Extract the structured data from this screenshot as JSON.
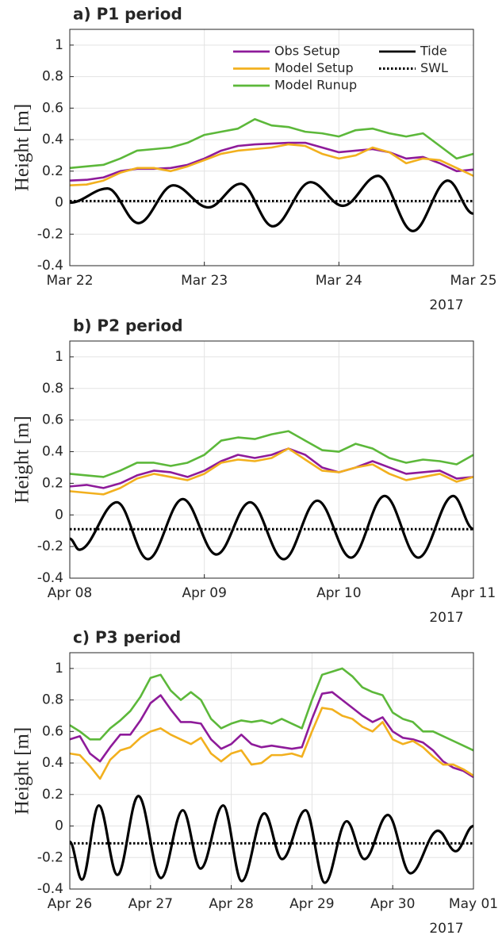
{
  "chart_data": [
    {
      "type": "line",
      "title": "a) P1 period",
      "y_label": "Height [m]",
      "x_offset_label": "2017",
      "xlim": [
        0,
        3
      ],
      "xticks": [
        {
          "value": 0,
          "label": "Mar 22"
        },
        {
          "value": 1,
          "label": "Mar 23"
        },
        {
          "value": 2,
          "label": "Mar 24"
        },
        {
          "value": 3,
          "label": "Mar 25"
        }
      ],
      "ylim": [
        -0.4,
        1.1
      ],
      "yticks": [
        -0.4,
        -0.2,
        0,
        0.2,
        0.4,
        0.6,
        0.8,
        1
      ],
      "grid": true,
      "legend": "upper right",
      "x": [
        0,
        0.125,
        0.25,
        0.375,
        0.5,
        0.625,
        0.75,
        0.875,
        1,
        1.125,
        1.25,
        1.375,
        1.5,
        1.625,
        1.75,
        1.875,
        2,
        2.125,
        2.25,
        2.375,
        2.5,
        2.625,
        2.75,
        2.875,
        3
      ],
      "series": [
        {
          "name": "Obs Setup",
          "color": "#8e1b9a",
          "values": [
            0.14,
            0.145,
            0.16,
            0.2,
            0.215,
            0.215,
            0.22,
            0.24,
            0.28,
            0.33,
            0.36,
            0.37,
            0.375,
            0.38,
            0.38,
            0.35,
            0.32,
            0.33,
            0.34,
            0.32,
            0.28,
            0.29,
            0.25,
            0.2,
            0.21
          ]
        },
        {
          "name": "Model Setup",
          "color": "#f2b01e",
          "values": [
            0.11,
            0.115,
            0.14,
            0.19,
            0.22,
            0.22,
            0.2,
            0.23,
            0.27,
            0.31,
            0.33,
            0.34,
            0.35,
            0.37,
            0.36,
            0.31,
            0.28,
            0.3,
            0.35,
            0.32,
            0.25,
            0.28,
            0.27,
            0.22,
            0.17
          ]
        },
        {
          "name": "Model Runup",
          "color": "#5cb83a",
          "values": [
            0.22,
            0.23,
            0.24,
            0.28,
            0.33,
            0.34,
            0.35,
            0.38,
            0.43,
            0.45,
            0.47,
            0.53,
            0.49,
            0.48,
            0.45,
            0.44,
            0.42,
            0.46,
            0.47,
            0.44,
            0.42,
            0.44,
            0.36,
            0.28,
            0.31
          ]
        },
        {
          "name": "Tide",
          "color": "#000000",
          "smooth": true,
          "x": [
            0,
            0.28,
            0.51,
            0.77,
            1.03,
            1.27,
            1.51,
            1.79,
            2.03,
            2.29,
            2.55,
            2.81,
            3
          ],
          "values": [
            0,
            0.09,
            -0.13,
            0.11,
            -0.03,
            0.12,
            -0.15,
            0.13,
            -0.02,
            0.17,
            -0.18,
            0.14,
            -0.07
          ]
        },
        {
          "name": "SWL",
          "color": "#000000",
          "dash": "dotted",
          "x": [
            0,
            3
          ],
          "values": [
            0.01,
            0.01
          ]
        }
      ]
    },
    {
      "type": "line",
      "title": "b) P2 period",
      "y_label": "Height [m]",
      "x_offset_label": "2017",
      "xlim": [
        0,
        3
      ],
      "xticks": [
        {
          "value": 0,
          "label": "Apr 08"
        },
        {
          "value": 1,
          "label": "Apr 09"
        },
        {
          "value": 2,
          "label": "Apr 10"
        },
        {
          "value": 3,
          "label": "Apr 11"
        }
      ],
      "ylim": [
        -0.4,
        1.1
      ],
      "yticks": [
        -0.4,
        -0.2,
        0,
        0.2,
        0.4,
        0.6,
        0.8,
        1
      ],
      "grid": true,
      "x": [
        0,
        0.125,
        0.25,
        0.375,
        0.5,
        0.625,
        0.75,
        0.875,
        1,
        1.125,
        1.25,
        1.375,
        1.5,
        1.625,
        1.75,
        1.875,
        2,
        2.125,
        2.25,
        2.375,
        2.5,
        2.625,
        2.75,
        2.875,
        3
      ],
      "series": [
        {
          "color": "#8e1b9a",
          "values": [
            0.18,
            0.19,
            0.17,
            0.2,
            0.25,
            0.28,
            0.27,
            0.24,
            0.28,
            0.34,
            0.38,
            0.36,
            0.38,
            0.42,
            0.38,
            0.3,
            0.27,
            0.3,
            0.34,
            0.3,
            0.26,
            0.27,
            0.28,
            0.23,
            0.24
          ]
        },
        {
          "color": "#f2b01e",
          "values": [
            0.15,
            0.14,
            0.13,
            0.17,
            0.23,
            0.26,
            0.24,
            0.22,
            0.26,
            0.33,
            0.35,
            0.34,
            0.36,
            0.42,
            0.35,
            0.28,
            0.27,
            0.3,
            0.32,
            0.26,
            0.22,
            0.24,
            0.26,
            0.21,
            0.24
          ]
        },
        {
          "color": "#5cb83a",
          "values": [
            0.26,
            0.25,
            0.24,
            0.28,
            0.33,
            0.33,
            0.31,
            0.33,
            0.38,
            0.47,
            0.49,
            0.48,
            0.51,
            0.53,
            0.47,
            0.41,
            0.4,
            0.45,
            0.42,
            0.36,
            0.33,
            0.35,
            0.34,
            0.32,
            0.38
          ]
        },
        {
          "color": "#000000",
          "smooth": true,
          "x": [
            0,
            0.07,
            0.35,
            0.58,
            0.84,
            1.09,
            1.34,
            1.59,
            1.84,
            2.09,
            2.34,
            2.59,
            2.85,
            3
          ],
          "values": [
            -0.15,
            -0.22,
            0.08,
            -0.28,
            0.1,
            -0.25,
            0.08,
            -0.28,
            0.09,
            -0.27,
            0.12,
            -0.27,
            0.12,
            -0.09
          ]
        },
        {
          "color": "#000000",
          "dash": "dotted",
          "x": [
            0,
            3
          ],
          "values": [
            -0.09,
            -0.09
          ]
        }
      ]
    },
    {
      "type": "line",
      "title": "c) P3 period",
      "y_label": "Height [m]",
      "x_offset_label": "2017",
      "xlim": [
        0,
        5
      ],
      "xticks": [
        {
          "value": 0,
          "label": "Apr 26"
        },
        {
          "value": 1,
          "label": "Apr 27"
        },
        {
          "value": 2,
          "label": "Apr 28"
        },
        {
          "value": 3,
          "label": "Apr 29"
        },
        {
          "value": 4,
          "label": "Apr 30"
        },
        {
          "value": 5,
          "label": "May 01"
        }
      ],
      "ylim": [
        -0.4,
        1.1
      ],
      "yticks": [
        -0.4,
        -0.2,
        0,
        0.2,
        0.4,
        0.6,
        0.8,
        1
      ],
      "grid": true,
      "x": [
        0,
        0.125,
        0.25,
        0.375,
        0.5,
        0.625,
        0.75,
        0.875,
        1,
        1.125,
        1.25,
        1.375,
        1.5,
        1.625,
        1.75,
        1.875,
        2,
        2.125,
        2.25,
        2.375,
        2.5,
        2.625,
        2.75,
        2.875,
        3,
        3.125,
        3.25,
        3.375,
        3.5,
        3.625,
        3.75,
        3.875,
        4,
        4.125,
        4.25,
        4.375,
        4.5,
        4.625,
        4.75,
        4.875,
        5
      ],
      "series": [
        {
          "color": "#8e1b9a",
          "values": [
            0.55,
            0.57,
            0.46,
            0.41,
            0.5,
            0.58,
            0.58,
            0.67,
            0.78,
            0.83,
            0.74,
            0.66,
            0.66,
            0.65,
            0.55,
            0.49,
            0.52,
            0.58,
            0.52,
            0.5,
            0.51,
            0.5,
            0.49,
            0.5,
            0.68,
            0.84,
            0.85,
            0.8,
            0.75,
            0.7,
            0.66,
            0.69,
            0.6,
            0.56,
            0.55,
            0.53,
            0.48,
            0.41,
            0.37,
            0.35,
            0.31
          ]
        },
        {
          "color": "#f2b01e",
          "values": [
            0.46,
            0.45,
            0.38,
            0.3,
            0.42,
            0.48,
            0.5,
            0.56,
            0.6,
            0.62,
            0.58,
            0.55,
            0.52,
            0.56,
            0.46,
            0.41,
            0.46,
            0.48,
            0.39,
            0.4,
            0.45,
            0.45,
            0.46,
            0.44,
            0.6,
            0.75,
            0.74,
            0.7,
            0.68,
            0.63,
            0.6,
            0.66,
            0.55,
            0.52,
            0.54,
            0.5,
            0.44,
            0.39,
            0.39,
            0.36,
            0.32
          ]
        },
        {
          "color": "#5cb83a",
          "values": [
            0.64,
            0.6,
            0.55,
            0.55,
            0.62,
            0.67,
            0.73,
            0.82,
            0.94,
            0.96,
            0.86,
            0.8,
            0.85,
            0.8,
            0.68,
            0.62,
            0.65,
            0.67,
            0.66,
            0.67,
            0.65,
            0.68,
            0.65,
            0.62,
            0.8,
            0.96,
            0.98,
            1,
            0.95,
            0.88,
            0.85,
            0.83,
            0.72,
            0.68,
            0.66,
            0.6,
            0.6,
            0.57,
            0.54,
            0.51,
            0.48
          ]
        },
        {
          "color": "#000000",
          "smooth": true,
          "x": [
            0,
            0.15,
            0.36,
            0.59,
            0.85,
            1.13,
            1.4,
            1.62,
            1.9,
            2.13,
            2.41,
            2.63,
            2.92,
            3.16,
            3.43,
            3.65,
            3.94,
            4.22,
            4.56,
            4.78,
            5
          ],
          "values": [
            -0.1,
            -0.34,
            0.13,
            -0.31,
            0.19,
            -0.33,
            0.1,
            -0.27,
            0.13,
            -0.35,
            0.08,
            -0.21,
            0.1,
            -0.36,
            0.03,
            -0.21,
            0.07,
            -0.3,
            -0.03,
            -0.16,
            0
          ]
        },
        {
          "color": "#000000",
          "dash": "dotted",
          "x": [
            0,
            5
          ],
          "values": [
            -0.11,
            -0.11
          ]
        }
      ]
    }
  ]
}
